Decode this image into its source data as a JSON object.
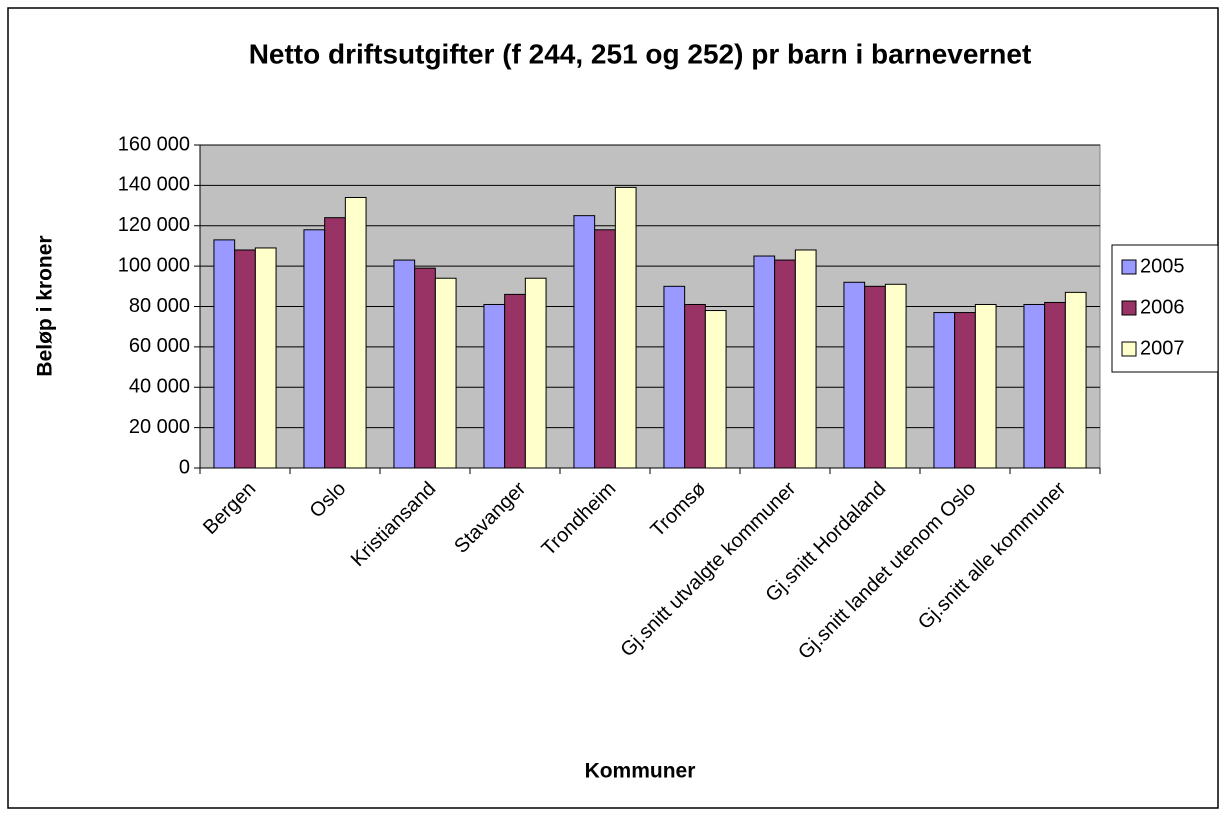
{
  "chart_data": {
    "type": "bar",
    "title": "Netto driftsutgifter (f 244, 251 og 252) pr barn i barnevernet",
    "x_label": "Kommuner",
    "y_label": "Beløp i kroner",
    "categories": [
      "Bergen",
      "Oslo",
      "Kristiansand",
      "Stavanger",
      "Trondheim",
      "Tromsø",
      "Gj.snitt utvalgte kommuner",
      "Gj.snitt Hordaland",
      "Gj.snitt landet utenom Oslo",
      "Gj.snitt alle kommuner"
    ],
    "series": [
      {
        "name": "2005",
        "color": "#9999ff",
        "values": [
          113000,
          118000,
          103000,
          81000,
          125000,
          90000,
          105000,
          92000,
          77000,
          81000
        ]
      },
      {
        "name": "2006",
        "color": "#993366",
        "values": [
          108000,
          124000,
          99000,
          86000,
          118000,
          81000,
          103000,
          90000,
          77000,
          82000
        ]
      },
      {
        "name": "2007",
        "color": "#ffffcc",
        "values": [
          109000,
          134000,
          94000,
          94000,
          139000,
          78000,
          108000,
          91000,
          81000,
          87000
        ]
      }
    ],
    "ylim": [
      0,
      160000
    ],
    "yticks": [
      0,
      {
        "value": 20000,
        "label": "20 000"
      },
      {
        "value": 40000,
        "label": "40 000"
      },
      {
        "value": 60000,
        "label": "60 000"
      },
      {
        "value": 80000,
        "label": "80 000"
      },
      {
        "value": 100000,
        "label": "100 000"
      },
      {
        "value": 120000,
        "label": "120 000"
      },
      {
        "value": 140000,
        "label": "140 000"
      },
      {
        "value": 160000,
        "label": "160 000"
      }
    ],
    "grid": true,
    "legend": "right",
    "plot_background": "#c0c0c0"
  }
}
